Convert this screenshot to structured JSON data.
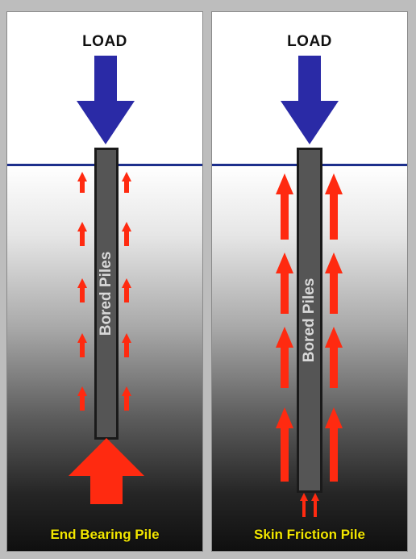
{
  "panels": {
    "left": {
      "load_label": "LOAD",
      "pile_label": "Bored Piles",
      "caption": "End Bearing Pile"
    },
    "right": {
      "load_label": "LOAD",
      "pile_label": "Bored Piles",
      "caption": "Skin Friction Pile"
    }
  },
  "colors": {
    "load_arrow": "#2a2aa6",
    "reaction_arrow": "#ff2a10",
    "ground_line": "#1d2f8c",
    "caption": "#f2e600"
  }
}
